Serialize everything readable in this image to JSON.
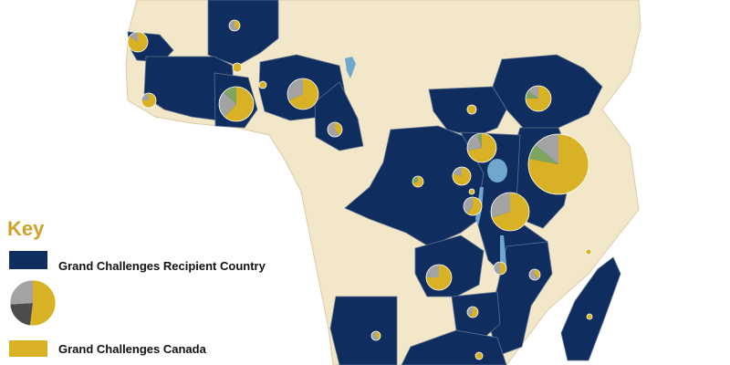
{
  "colors": {
    "ocean": "#ffffff",
    "land": "#f2e7c9",
    "recipient": "#0f2d5e",
    "border": "#5f7290",
    "lake": "#6fa8cc",
    "pie_yellow": "#d8b224",
    "pie_gray": "#a3a3a3",
    "pie_dark": "#4c4c4c",
    "pie_green": "#7fa65f",
    "key_title": "#d1a12a"
  },
  "legend": {
    "title": "Key",
    "recipient_label": "Grand Challenges Recipient Country",
    "canada_label": "Grand Challenges Canada"
  },
  "legend_pie_sample": [
    0.52,
    0.22,
    0.26
  ]
}
